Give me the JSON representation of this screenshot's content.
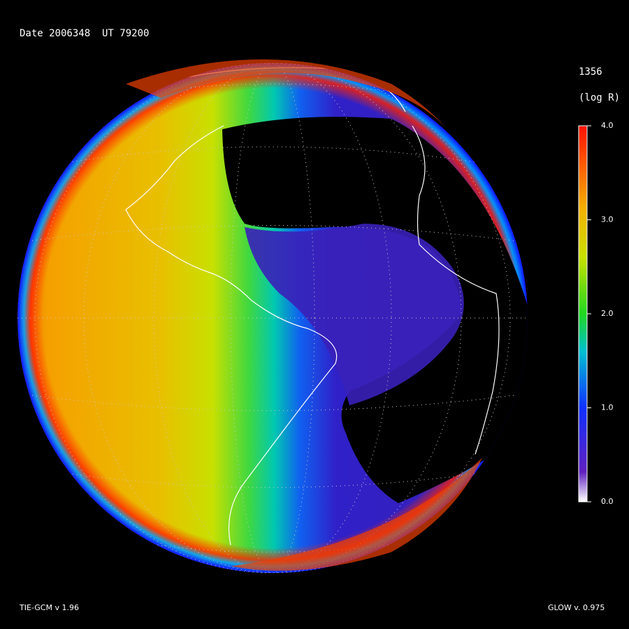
{
  "header": {
    "date_line": "Date 2006348  UT 79200"
  },
  "colorbar": {
    "title": "1356",
    "unit": "(log R)",
    "ticks": [
      "4.0",
      "3.0",
      "2.0",
      "1.0",
      "0.0"
    ]
  },
  "footer": {
    "left": "TIE-GCM v 1.96",
    "right": "GLOW v. 0.975"
  }
}
